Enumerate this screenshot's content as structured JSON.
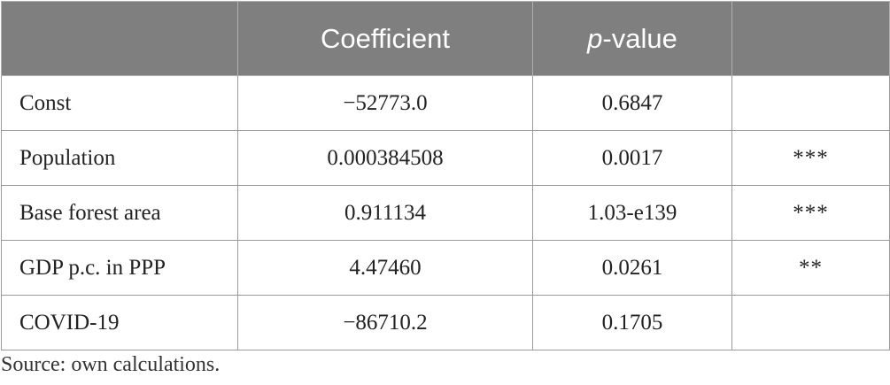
{
  "table": {
    "headers": [
      "",
      "Coefficient",
      "p",
      "-value",
      ""
    ],
    "rows": [
      {
        "variable": "Const",
        "coefficient": "−52773.0",
        "p_value": "0.6847",
        "significance": ""
      },
      {
        "variable": "Population",
        "coefficient": "0.000384508",
        "p_value": "0.0017",
        "significance": "***"
      },
      {
        "variable": "Base forest area",
        "coefficient": "0.911134",
        "p_value": "1.03-e139",
        "significance": "***"
      },
      {
        "variable": "GDP p.c. in PPP",
        "coefficient": "4.47460",
        "p_value": "0.0261",
        "significance": "**"
      },
      {
        "variable": "COVID-19",
        "coefficient": "−86710.2",
        "p_value": "0.1705",
        "significance": ""
      }
    ]
  },
  "source_note": "Source: own calculations."
}
